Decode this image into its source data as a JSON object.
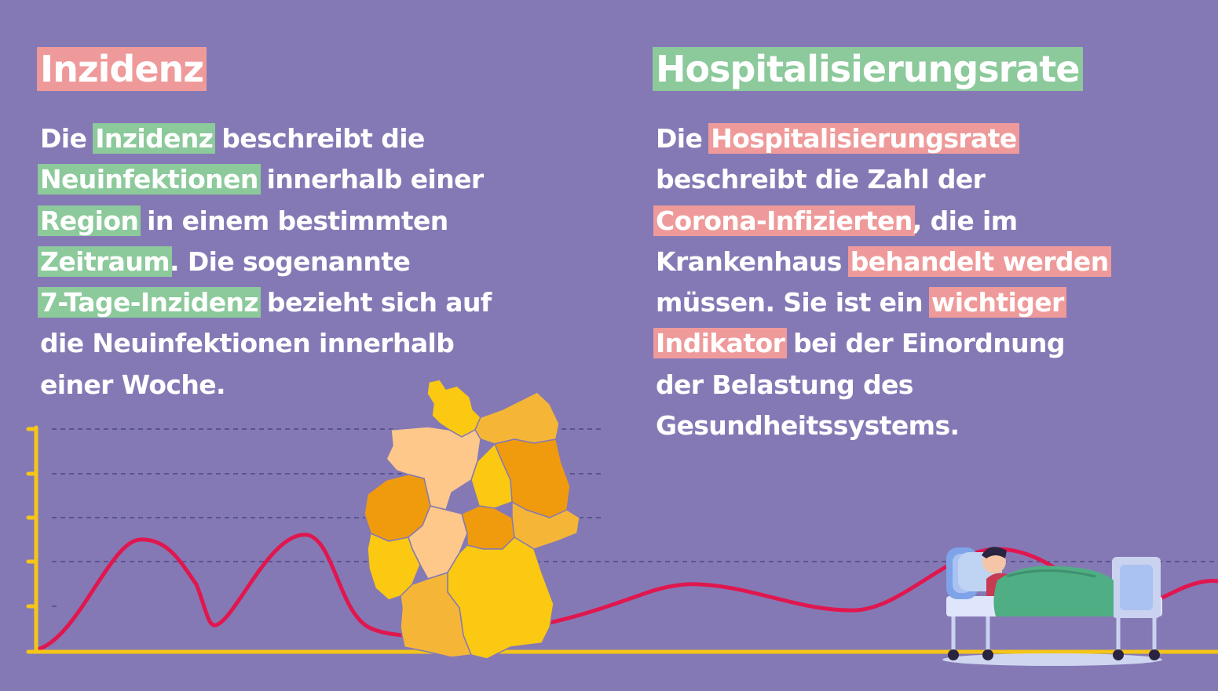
{
  "colors": {
    "background": "#8579b5",
    "green_highlight": "#8cc99b",
    "pink_highlight": "#ef9a9a",
    "axis": "#f5c518",
    "curve": "#e0174f"
  },
  "left": {
    "title": "Inzidenz",
    "lines": [
      [
        "Die ",
        "Inzidenz",
        " beschreibt die"
      ],
      [
        "Neuinfektionen",
        " innerhalb einer"
      ],
      [
        "Region",
        " in einem bestimmten"
      ],
      [
        "Zeitraum",
        ". Die sogenannte"
      ],
      [
        "7-Tage-Inzidenz",
        " bezieht sich auf"
      ],
      [
        "die Neuinfektionen innerhalb"
      ],
      [
        "einer Woche."
      ]
    ]
  },
  "right": {
    "title": "Hospitalisierungsrate",
    "lines": [
      [
        "Die ",
        "Hospitalisierungsrate"
      ],
      [
        "beschreibt die Zahl der"
      ],
      [
        "Corona-Infizierten",
        ", die im"
      ],
      [
        "Krankenhaus ",
        "behandelt werden"
      ],
      [
        "müssen. Sie ist ein ",
        "wichtiger"
      ],
      [
        "Indikator",
        " bei der Einordnung"
      ],
      [
        "der Belastung des"
      ],
      [
        "Gesundheitssystems."
      ]
    ]
  },
  "illustrations": {
    "map_icon": "germany-map-icon",
    "bed_icon": "hospital-bed-icon"
  }
}
